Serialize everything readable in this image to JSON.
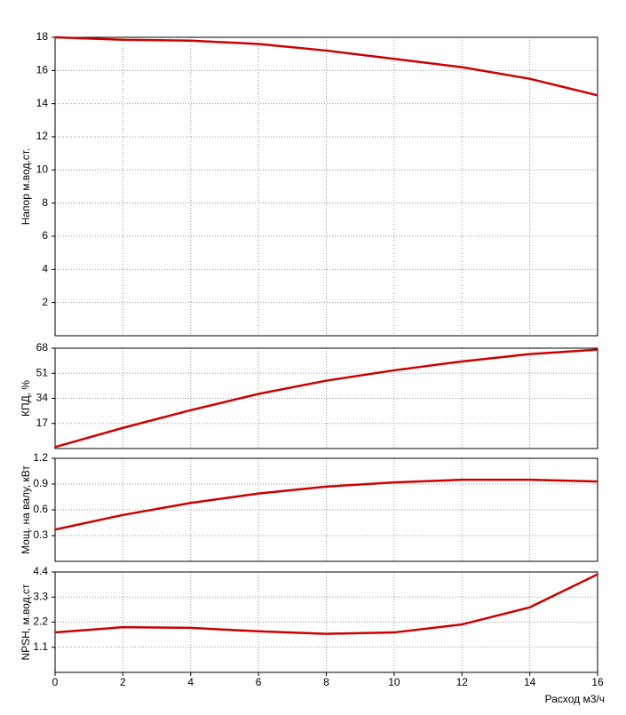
{
  "chart_data": [
    {
      "type": "line",
      "ylabel": "Напор м.вод.ст.",
      "x": [
        0,
        2,
        4,
        6,
        8,
        10,
        12,
        14,
        16
      ],
      "values": [
        18,
        17.85,
        17.8,
        17.6,
        17.2,
        16.7,
        16.2,
        15.5,
        14.5
      ],
      "color": "#cc0000",
      "ylim": [
        0,
        18
      ],
      "yticks": [
        2,
        4,
        6,
        8,
        10,
        12,
        14,
        16,
        18
      ],
      "grid": true
    },
    {
      "type": "line",
      "ylabel": "КПД, %",
      "x": [
        0,
        2,
        4,
        6,
        8,
        10,
        12,
        14,
        16
      ],
      "values": [
        1,
        14,
        26,
        37,
        46,
        53,
        59,
        64,
        67
      ],
      "color": "#cc0000",
      "ylim": [
        0,
        68
      ],
      "yticks": [
        17,
        34,
        51,
        68
      ],
      "grid": true
    },
    {
      "type": "line",
      "ylabel": "Мощ. на валу, кВт",
      "x": [
        0,
        2,
        4,
        6,
        8,
        10,
        12,
        14,
        16
      ],
      "values": [
        0.37,
        0.54,
        0.68,
        0.79,
        0.87,
        0.92,
        0.95,
        0.95,
        0.93
      ],
      "color": "#cc0000",
      "ylim": [
        0,
        1.2
      ],
      "yticks": [
        0.3,
        0.6,
        0.9,
        1.2
      ],
      "grid": true
    },
    {
      "type": "line",
      "ylabel": "NPSH, м.вод.ст",
      "xlabel": "Расход м3/ч",
      "x": [
        0,
        2,
        4,
        6,
        8,
        10,
        12,
        14,
        16
      ],
      "values": [
        1.75,
        1.98,
        1.95,
        1.8,
        1.69,
        1.75,
        2.1,
        2.85,
        4.3
      ],
      "color": "#cc0000",
      "ylim": [
        0,
        4.4
      ],
      "yticks": [
        1.1,
        2.2,
        3.3,
        4.4
      ],
      "xlim": [
        0,
        16
      ],
      "xticks": [
        0,
        2,
        4,
        6,
        8,
        10,
        12,
        14,
        16
      ],
      "grid": true
    }
  ]
}
